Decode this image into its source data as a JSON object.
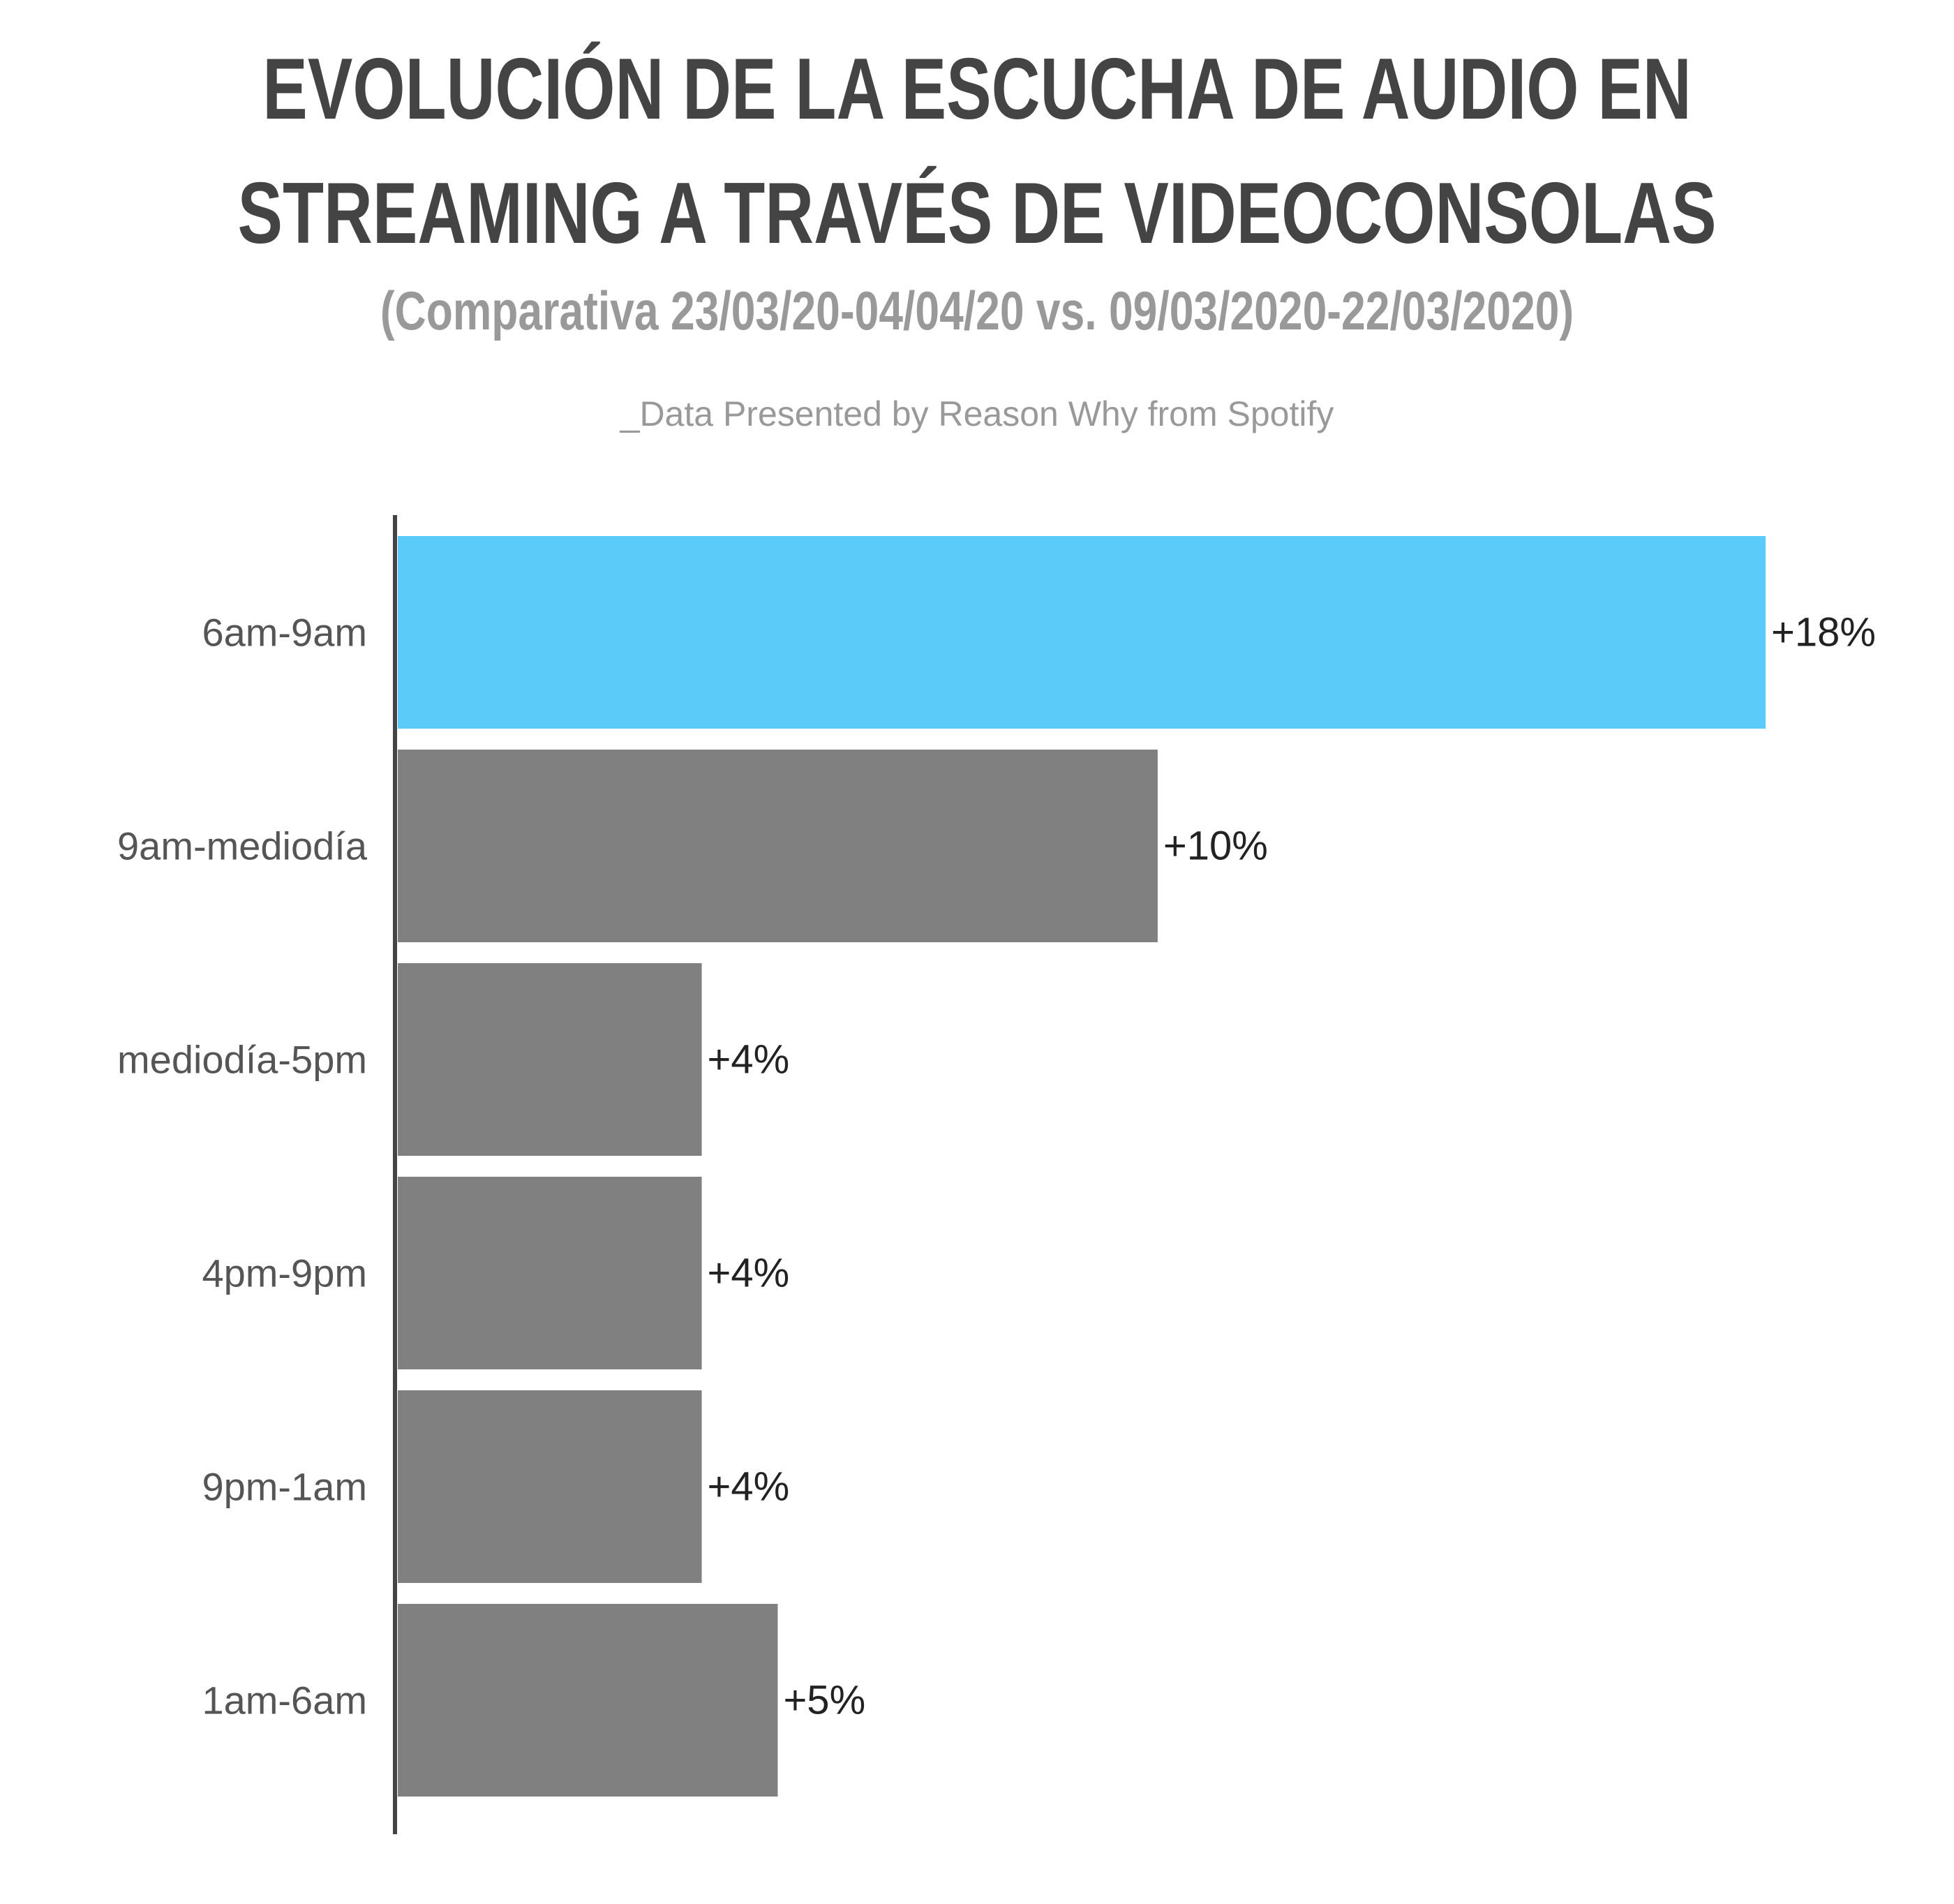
{
  "header": {
    "title_line_1": "EVOLUCIÓN DE LA ESCUCHA DE AUDIO EN",
    "title_line_2": "STREAMING A TRAVÉS DE VIDEOCONSOLAS",
    "subtitle": "(Comparativa 23/03/20-04/04/20 vs. 09/03/2020-22/03/2020)",
    "source": "_Data Presented by Reason Why from Spotify"
  },
  "chart_data": {
    "type": "bar",
    "orientation": "horizontal",
    "categories": [
      "6am-9am",
      "9am-mediodía",
      "mediodía-5pm",
      "4pm-9pm",
      "9pm-1am",
      "1am-6am"
    ],
    "values": [
      18,
      10,
      4,
      4,
      4,
      5
    ],
    "value_labels": [
      "+18%",
      "+10%",
      "+4%",
      "+4%",
      "+4%",
      "+5%"
    ],
    "xlim": [
      0,
      18
    ],
    "grid": false,
    "legend": "none",
    "colors": {
      "highlight": "#5BCBFA",
      "default": "#808080",
      "axis": "#444444",
      "category_label": "#555555",
      "value_label": "#222222"
    },
    "highlight_index": 0
  }
}
